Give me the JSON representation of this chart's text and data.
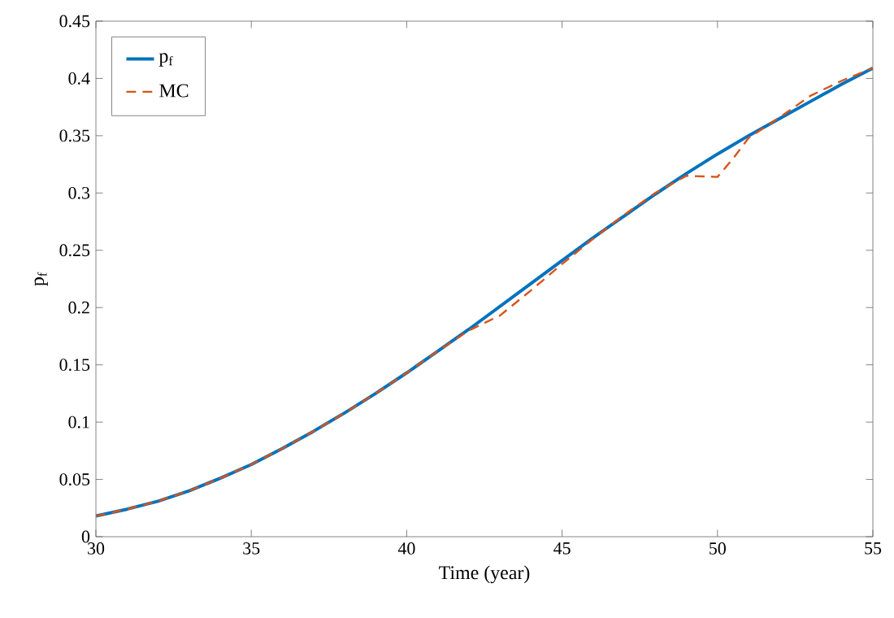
{
  "chart_data": {
    "type": "line",
    "xlabel": "Time (year)",
    "ylabel": "p$_{f}$",
    "xlim": [
      30,
      55
    ],
    "ylim": [
      0,
      0.45
    ],
    "xticks": [
      30,
      35,
      40,
      45,
      50,
      55
    ],
    "yticks": [
      0,
      0.05,
      0.1,
      0.15,
      0.2,
      0.25,
      0.3,
      0.35,
      0.4,
      0.45
    ],
    "legend": "top left",
    "grid": false,
    "series": [
      {
        "name": "p$_{f}$",
        "color": "#0072bd",
        "line_style": "solid",
        "x": [
          30,
          31,
          32,
          33,
          34,
          35,
          36,
          37,
          38,
          39,
          40,
          41,
          42,
          43,
          44,
          45,
          46,
          47,
          48,
          49,
          50,
          51,
          52,
          53,
          54,
          55
        ],
        "values": [
          0.018,
          0.024,
          0.031,
          0.04,
          0.051,
          0.063,
          0.077,
          0.092,
          0.108,
          0.125,
          0.143,
          0.162,
          0.181,
          0.201,
          0.221,
          0.241,
          0.261,
          0.28,
          0.299,
          0.317,
          0.334,
          0.35,
          0.365,
          0.38,
          0.395,
          0.409
        ]
      },
      {
        "name": "MC",
        "color": "#d95319",
        "line_style": "dashed",
        "x": [
          30,
          31,
          32,
          33,
          34,
          35,
          36,
          37,
          38,
          39,
          40,
          41,
          42,
          43,
          44,
          45,
          46,
          47,
          48,
          49,
          50,
          50.5,
          51,
          52,
          53,
          54,
          55
        ],
        "values": [
          0.018,
          0.024,
          0.031,
          0.04,
          0.051,
          0.063,
          0.077,
          0.092,
          0.108,
          0.125,
          0.143,
          0.162,
          0.18,
          0.193,
          0.215,
          0.238,
          0.26,
          0.281,
          0.3,
          0.315,
          0.314,
          0.33,
          0.348,
          0.366,
          0.385,
          0.398,
          0.409
        ]
      }
    ]
  }
}
